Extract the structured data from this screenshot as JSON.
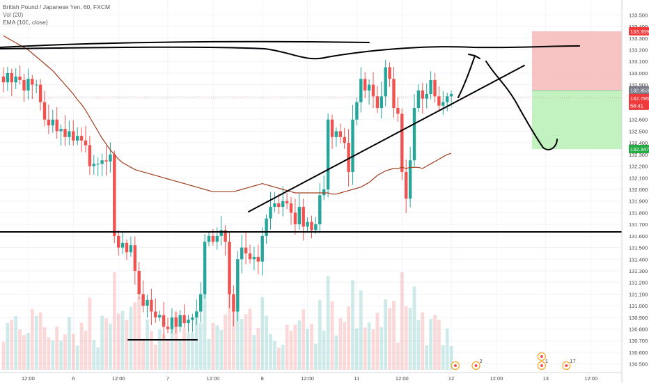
{
  "legend": {
    "symbol_title": "British Pound / Japanese Yen, 60, FXCM",
    "volume_label": "Vol (20)",
    "ema_label": "EMA (100, close)"
  },
  "colors": {
    "bull": "#26a69a",
    "bear": "#ef5350",
    "ema": "#a23d1e",
    "drawing": "#000000",
    "stop_zone": "#f7b8b8",
    "target_zone": "#b7f0b4"
  },
  "price_tags": [
    {
      "label": "133.359",
      "value": 133.359,
      "color": "#ef3b3b"
    },
    {
      "label": "132.853",
      "value": 132.853,
      "color": "#787b86"
    },
    {
      "label": "132.785",
      "value": 132.785,
      "color": "#ef3b3b"
    },
    {
      "label": "58:41",
      "value": 132.72,
      "color": "#ef3b3b"
    },
    {
      "label": "132.347",
      "value": 132.347,
      "color": "#22ab41"
    }
  ],
  "events": [
    {
      "label": "",
      "x_index": 110
    },
    {
      "label": "2",
      "x_index": 115
    },
    {
      "label": "",
      "x_index": 131
    },
    {
      "label": "1",
      "x_index": 131
    },
    {
      "label": "17",
      "x_index": 137
    }
  ],
  "chart_data": {
    "type": "candlestick",
    "title": "British Pound / Japanese Yen, 60, FXCM",
    "xlabel": "",
    "ylabel": "",
    "ylim": [
      130.45,
      133.55
    ],
    "y_ticks": [
      133.5,
      133.4,
      133.3,
      133.2,
      133.1,
      133.0,
      132.9,
      132.8,
      132.7,
      132.6,
      132.5,
      132.4,
      132.3,
      132.2,
      132.1,
      132.0,
      131.9,
      131.8,
      131.7,
      131.6,
      131.5,
      131.4,
      131.3,
      131.2,
      131.1,
      131.0,
      130.9,
      130.8,
      130.7,
      130.6,
      130.5
    ],
    "x_ticks": [
      {
        "label": "12:00",
        "index": 6
      },
      {
        "label": "6",
        "index": 17
      },
      {
        "label": "12:00",
        "index": 28
      },
      {
        "label": "7",
        "index": 40
      },
      {
        "label": "12:00",
        "index": 51
      },
      {
        "label": "8",
        "index": 63
      },
      {
        "label": "12:00",
        "index": 74
      },
      {
        "label": "11",
        "index": 86
      },
      {
        "label": "12:00",
        "index": 97
      },
      {
        "label": "12",
        "index": 109
      },
      {
        "label": "12:00",
        "index": 120
      },
      {
        "label": "13",
        "index": 132
      },
      {
        "label": "12:00",
        "index": 143
      }
    ],
    "grid": true,
    "legend_position": "top-left",
    "close": [
      132.92,
      133.0,
      132.92,
      132.97,
      132.94,
      132.85,
      132.95,
      132.9,
      132.9,
      132.75,
      132.6,
      132.55,
      132.6,
      132.5,
      132.52,
      132.45,
      132.5,
      132.42,
      132.46,
      132.42,
      132.38,
      132.2,
      132.22,
      132.22,
      132.25,
      132.24,
      132.3,
      131.6,
      131.5,
      131.54,
      131.46,
      131.52,
      131.3,
      131.1,
      131.0,
      131.05,
      130.95,
      130.9,
      130.92,
      130.82,
      130.8,
      130.9,
      130.82,
      130.92,
      130.85,
      130.88,
      130.9,
      130.95,
      131.1,
      131.55,
      131.6,
      131.55,
      131.6,
      131.65,
      131.55,
      131.1,
      130.95,
      131.4,
      131.5,
      131.45,
      131.4,
      131.42,
      131.38,
      131.6,
      131.75,
      131.85,
      131.88,
      131.85,
      131.9,
      131.88,
      131.8,
      131.7,
      131.85,
      131.68,
      131.72,
      131.65,
      131.7,
      131.95,
      132.0,
      132.6,
      132.45,
      132.5,
      132.45,
      132.4,
      132.15,
      132.6,
      132.75,
      132.95,
      132.85,
      132.9,
      132.8,
      132.7,
      132.8,
      133.05,
      132.95,
      132.7,
      132.65,
      132.15,
      131.92,
      132.25,
      132.7,
      132.85,
      132.78,
      132.82,
      132.94,
      132.8,
      132.72,
      132.75,
      132.8,
      132.82
    ],
    "ema": [
      133.32,
      133.3,
      133.28,
      133.26,
      133.24,
      133.22,
      133.2,
      133.17,
      133.14,
      133.11,
      133.08,
      133.05,
      133.02,
      132.98,
      132.94,
      132.9,
      132.86,
      132.82,
      132.77,
      132.73,
      132.68,
      132.62,
      132.56,
      132.5,
      132.44,
      132.39,
      132.34,
      132.3,
      132.26,
      132.23,
      132.21,
      132.19,
      132.17,
      132.16,
      132.15,
      132.14,
      132.13,
      132.12,
      132.11,
      132.1,
      132.09,
      132.08,
      132.07,
      132.06,
      132.05,
      132.04,
      132.03,
      132.02,
      132.01,
      132.0,
      131.99,
      131.98,
      131.98,
      131.98,
      131.98,
      131.98,
      131.98,
      131.99,
      132.0,
      132.01,
      132.02,
      132.03,
      132.04,
      132.05,
      132.04,
      132.03,
      132.02,
      132.01,
      132.0,
      131.99,
      131.98,
      131.97,
      131.97,
      131.97,
      131.97,
      131.97,
      131.97,
      131.97,
      131.97,
      131.97,
      131.96,
      131.96,
      131.97,
      131.98,
      131.99,
      132.0,
      132.01,
      132.02,
      132.04,
      132.06,
      132.09,
      132.12,
      132.14,
      132.16,
      132.17,
      132.18,
      132.18,
      132.19,
      132.18,
      132.19,
      132.19,
      132.19,
      132.18,
      132.2,
      132.22,
      132.24,
      132.26,
      132.28,
      132.3,
      132.31
    ]
  }
}
